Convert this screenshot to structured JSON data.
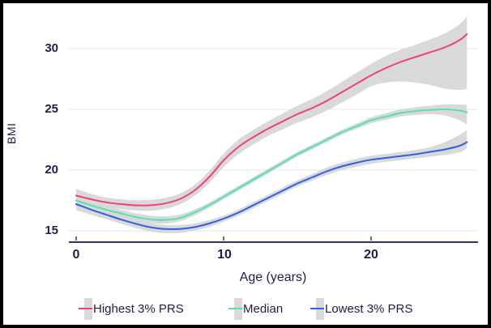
{
  "chart_data": {
    "type": "line",
    "title": "",
    "ylabel": "BMI",
    "xlabel": "Age (years)",
    "yticks": [
      30,
      25,
      20,
      15
    ],
    "xticks": [
      0,
      10,
      20
    ],
    "ylim": [
      14,
      33
    ],
    "xlim": [
      -0.5,
      27.3
    ],
    "grid": "horizontal",
    "legend_position": "bottom",
    "band_color": "#d9d9d9",
    "gridline_color": "#e9e9e9",
    "axis_line_color": "#3c3063",
    "x": [
      0,
      1,
      2,
      3,
      4,
      5,
      6,
      7,
      8,
      9,
      10,
      11,
      12,
      13,
      14,
      15,
      16,
      17,
      18,
      19,
      20,
      21,
      22,
      23,
      24,
      25,
      26,
      26.5
    ],
    "series": [
      {
        "name": "Highest 3% PRS",
        "color": "#ef4079",
        "values": [
          17.9,
          17.6,
          17.35,
          17.2,
          17.1,
          17.1,
          17.25,
          17.6,
          18.3,
          19.4,
          20.8,
          21.9,
          22.7,
          23.4,
          24.0,
          24.6,
          25.1,
          25.7,
          26.4,
          27.1,
          27.8,
          28.4,
          28.9,
          29.3,
          29.7,
          30.1,
          30.7,
          31.2
        ],
        "ci_upper": [
          18.45,
          18.05,
          17.75,
          17.6,
          17.52,
          17.55,
          17.7,
          18.05,
          18.75,
          19.9,
          21.35,
          22.5,
          23.3,
          24.0,
          24.65,
          25.3,
          25.85,
          26.5,
          27.25,
          28.0,
          28.75,
          29.4,
          29.9,
          30.3,
          30.75,
          31.25,
          32.0,
          32.65
        ],
        "ci_lower": [
          17.35,
          17.15,
          16.95,
          16.8,
          16.68,
          16.65,
          16.8,
          17.15,
          17.85,
          18.9,
          20.25,
          21.3,
          22.1,
          22.8,
          23.35,
          23.9,
          24.35,
          24.9,
          25.55,
          26.2,
          26.9,
          27.2,
          27.3,
          27.2,
          27.0,
          26.7,
          26.6,
          26.7
        ]
      },
      {
        "name": "Median",
        "color": "#50e3ae",
        "values": [
          17.5,
          17.1,
          16.75,
          16.45,
          16.15,
          15.95,
          15.9,
          16.05,
          16.5,
          17.1,
          17.8,
          18.5,
          19.2,
          19.9,
          20.6,
          21.3,
          21.9,
          22.5,
          23.1,
          23.6,
          24.1,
          24.4,
          24.7,
          24.85,
          24.95,
          25.0,
          24.9,
          24.75
        ],
        "ci_upper": [
          17.95,
          17.45,
          17.05,
          16.75,
          16.45,
          16.25,
          16.2,
          16.33,
          16.75,
          17.32,
          18.0,
          18.7,
          19.4,
          20.1,
          20.8,
          21.5,
          22.1,
          22.7,
          23.3,
          23.82,
          24.35,
          24.67,
          25.0,
          25.17,
          25.3,
          25.4,
          25.4,
          25.35
        ],
        "ci_lower": [
          17.05,
          16.75,
          16.45,
          16.15,
          15.85,
          15.65,
          15.6,
          15.77,
          16.25,
          16.88,
          17.6,
          18.3,
          19.0,
          19.7,
          20.4,
          21.1,
          21.7,
          22.3,
          22.9,
          23.38,
          23.85,
          24.13,
          24.4,
          24.53,
          24.6,
          24.5,
          24.1,
          23.75
        ]
      },
      {
        "name": "Lowest 3% PRS",
        "color": "#2f5fe3",
        "values": [
          17.2,
          16.75,
          16.35,
          15.95,
          15.6,
          15.3,
          15.15,
          15.15,
          15.3,
          15.6,
          16.0,
          16.5,
          17.1,
          17.7,
          18.3,
          18.9,
          19.4,
          19.9,
          20.3,
          20.6,
          20.85,
          21.0,
          21.15,
          21.3,
          21.5,
          21.7,
          22.0,
          22.3
        ],
        "ci_upper": [
          17.7,
          17.17,
          16.73,
          16.31,
          15.95,
          15.65,
          15.5,
          15.48,
          15.6,
          15.88,
          16.25,
          16.75,
          17.35,
          17.95,
          18.55,
          19.15,
          19.67,
          20.2,
          20.62,
          20.93,
          21.18,
          21.33,
          21.48,
          21.65,
          21.9,
          22.3,
          22.9,
          23.3
        ],
        "ci_lower": [
          16.7,
          16.33,
          15.97,
          15.59,
          15.25,
          14.95,
          14.8,
          14.82,
          15.0,
          15.32,
          15.75,
          16.25,
          16.85,
          17.45,
          18.05,
          18.65,
          19.13,
          19.6,
          19.98,
          20.27,
          20.52,
          20.67,
          20.82,
          20.95,
          21.1,
          21.25,
          21.45,
          21.8
        ]
      }
    ]
  },
  "colors": {
    "text": "#241b4d",
    "axis_line": "#3c3063",
    "gridline": "#e9e9e9",
    "band": "#d9d9d9",
    "background": "#ffffff",
    "frame_border": "#000000"
  }
}
